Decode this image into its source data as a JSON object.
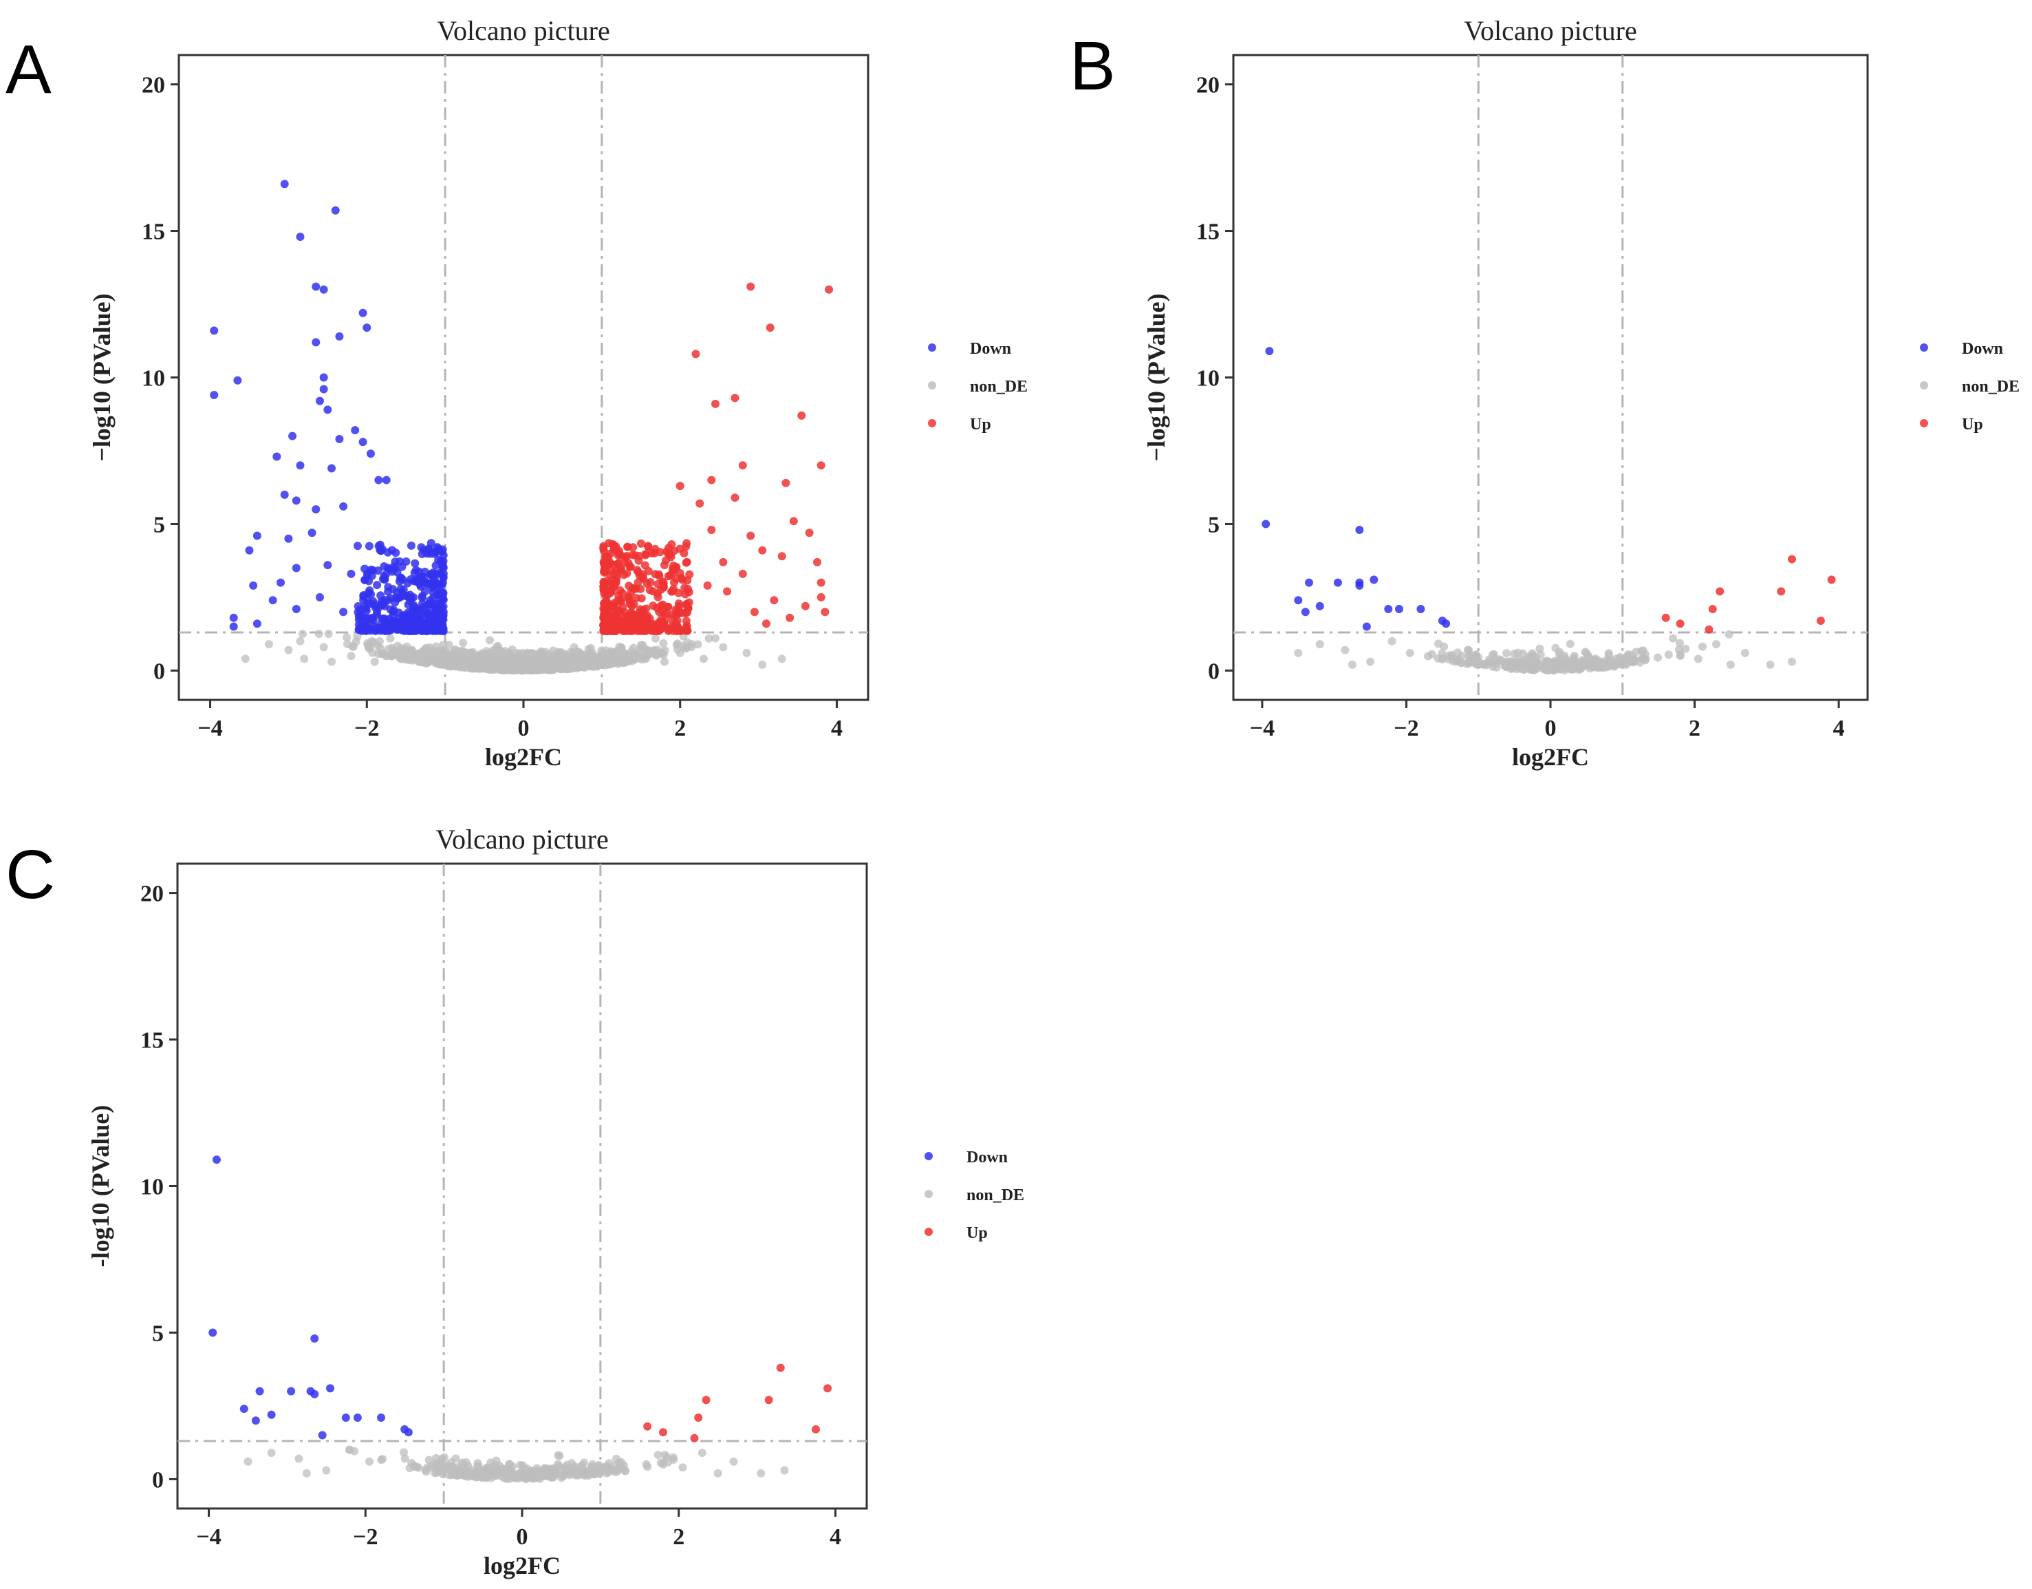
{
  "colors": {
    "down": "#3333EE",
    "non_de": "#BEBEBE",
    "up": "#EE3333",
    "threshold_line": "#B4B4B4"
  },
  "chart_data": [
    {
      "panel": "A",
      "type": "scatter",
      "title": "Volcano picture",
      "xlabel": "log2FC",
      "ylabel": "−log10 (PValue)",
      "xlim": [
        -4.4,
        4.4
      ],
      "ylim": [
        -1,
        21
      ],
      "xticks": [
        "−4",
        "−2",
        "0",
        "2",
        "4"
      ],
      "yticks": [
        "0",
        "5",
        "10",
        "15",
        "20"
      ],
      "grid": false,
      "legend_position": "right",
      "thresholds": {
        "log2fc": [
          -1,
          1
        ],
        "neg_log10_p": 1.3
      },
      "series": [
        {
          "name": "Down",
          "color": "#3333EE",
          "n_dense": 420,
          "points": [
            [
              -3.05,
              16.6
            ],
            [
              -2.4,
              15.7
            ],
            [
              -2.85,
              14.8
            ],
            [
              -2.65,
              13.1
            ],
            [
              -2.55,
              13.0
            ],
            [
              -3.95,
              11.6
            ],
            [
              -2.05,
              12.2
            ],
            [
              -2.35,
              11.4
            ],
            [
              -2.65,
              11.2
            ],
            [
              -2.0,
              11.7
            ],
            [
              -3.65,
              9.9
            ],
            [
              -2.55,
              10.0
            ],
            [
              -2.55,
              9.6
            ],
            [
              -2.6,
              9.2
            ],
            [
              -3.95,
              9.4
            ],
            [
              -2.95,
              8.0
            ],
            [
              -2.5,
              8.9
            ],
            [
              -2.15,
              8.2
            ],
            [
              -2.35,
              7.9
            ],
            [
              -2.05,
              7.8
            ],
            [
              -1.95,
              7.4
            ],
            [
              -3.15,
              7.3
            ],
            [
              -2.85,
              7.0
            ],
            [
              -2.45,
              6.9
            ],
            [
              -1.85,
              6.5
            ],
            [
              -1.75,
              6.5
            ],
            [
              -3.05,
              6.0
            ],
            [
              -2.9,
              5.8
            ],
            [
              -2.65,
              5.5
            ],
            [
              -2.3,
              5.6
            ],
            [
              -3.4,
              4.6
            ],
            [
              -3.0,
              4.5
            ],
            [
              -2.7,
              4.7
            ],
            [
              -3.5,
              4.1
            ],
            [
              -2.9,
              3.5
            ],
            [
              -3.1,
              3.0
            ],
            [
              -2.5,
              3.6
            ],
            [
              -3.45,
              2.9
            ],
            [
              -2.2,
              3.3
            ],
            [
              -3.2,
              2.4
            ],
            [
              -2.9,
              2.1
            ],
            [
              -2.6,
              2.5
            ],
            [
              -3.7,
              1.8
            ],
            [
              -3.4,
              1.6
            ],
            [
              -3.7,
              1.5
            ],
            [
              -2.3,
              2.0
            ]
          ]
        },
        {
          "name": "non_DE",
          "color": "#BEBEBE",
          "n_dense": 1700,
          "points": [
            [
              -3.55,
              0.4
            ],
            [
              -3.25,
              0.9
            ],
            [
              -2.85,
              1.0
            ],
            [
              -2.55,
              0.8
            ],
            [
              -2.8,
              0.4
            ],
            [
              -2.2,
              0.5
            ],
            [
              -1.9,
              0.3
            ],
            [
              -2.45,
              0.3
            ],
            [
              -3.0,
              0.7
            ],
            [
              3.05,
              0.2
            ],
            [
              2.85,
              0.6
            ],
            [
              2.55,
              0.8
            ],
            [
              2.3,
              0.4
            ],
            [
              2.0,
              0.6
            ],
            [
              1.8,
              0.3
            ],
            [
              2.45,
              1.1
            ],
            [
              3.3,
              0.4
            ],
            [
              2.15,
              0.9
            ]
          ]
        },
        {
          "name": "Up",
          "color": "#EE3333",
          "n_dense": 420,
          "points": [
            [
              2.9,
              13.1
            ],
            [
              3.9,
              13.0
            ],
            [
              3.15,
              11.7
            ],
            [
              2.2,
              10.8
            ],
            [
              2.45,
              9.1
            ],
            [
              2.7,
              9.3
            ],
            [
              3.55,
              8.7
            ],
            [
              3.8,
              7.0
            ],
            [
              2.8,
              7.0
            ],
            [
              2.0,
              6.3
            ],
            [
              2.4,
              6.5
            ],
            [
              3.35,
              6.4
            ],
            [
              2.7,
              5.9
            ],
            [
              2.25,
              5.7
            ],
            [
              3.65,
              4.7
            ],
            [
              2.4,
              4.8
            ],
            [
              2.9,
              4.6
            ],
            [
              3.05,
              4.1
            ],
            [
              3.45,
              5.1
            ],
            [
              3.75,
              3.7
            ],
            [
              3.8,
              3.0
            ],
            [
              3.8,
              2.5
            ],
            [
              3.85,
              2.0
            ],
            [
              2.55,
              3.7
            ],
            [
              3.3,
              3.9
            ],
            [
              2.8,
              3.3
            ],
            [
              3.2,
              2.4
            ],
            [
              3.6,
              2.2
            ],
            [
              2.6,
              2.7
            ],
            [
              2.95,
              2.0
            ],
            [
              2.35,
              2.9
            ],
            [
              1.8,
              3.6
            ],
            [
              2.05,
              4.0
            ],
            [
              3.4,
              1.8
            ],
            [
              3.1,
              1.6
            ]
          ]
        }
      ]
    },
    {
      "panel": "B",
      "type": "scatter",
      "title": "Volcano picture",
      "xlabel": "log2FC",
      "ylabel": "−log10 (PValue)",
      "xlim": [
        -4.4,
        4.4
      ],
      "ylim": [
        -1,
        21
      ],
      "xticks": [
        "−4",
        "−2",
        "0",
        "2",
        "4"
      ],
      "yticks": [
        "0",
        "5",
        "10",
        "15",
        "20"
      ],
      "grid": false,
      "legend_position": "right",
      "thresholds": {
        "log2fc": [
          -1,
          1
        ],
        "neg_log10_p": 1.3
      },
      "series": [
        {
          "name": "Down",
          "color": "#3333EE",
          "n_dense": 0,
          "points": [
            [
              -3.9,
              10.9
            ],
            [
              -3.95,
              5.0
            ],
            [
              -2.65,
              4.8
            ],
            [
              -3.35,
              3.0
            ],
            [
              -2.95,
              3.0
            ],
            [
              -2.65,
              3.0
            ],
            [
              -2.65,
              2.9
            ],
            [
              -2.45,
              3.1
            ],
            [
              -3.2,
              2.2
            ],
            [
              -3.5,
              2.4
            ],
            [
              -3.4,
              2.0
            ],
            [
              -2.25,
              2.1
            ],
            [
              -2.1,
              2.1
            ],
            [
              -1.8,
              2.1
            ],
            [
              -1.5,
              1.7
            ],
            [
              -1.45,
              1.6
            ],
            [
              -2.55,
              1.5
            ]
          ]
        },
        {
          "name": "non_DE",
          "color": "#BEBEBE",
          "n_dense": 330,
          "points": [
            [
              -3.5,
              0.6
            ],
            [
              -3.2,
              0.9
            ],
            [
              -2.85,
              0.7
            ],
            [
              -2.5,
              0.3
            ],
            [
              -2.2,
              1.0
            ],
            [
              -2.75,
              0.2
            ],
            [
              -1.95,
              0.6
            ],
            [
              3.05,
              0.2
            ],
            [
              2.7,
              0.6
            ],
            [
              3.35,
              0.3
            ],
            [
              2.3,
              0.9
            ],
            [
              2.05,
              0.4
            ],
            [
              1.8,
              0.5
            ],
            [
              2.5,
              0.2
            ]
          ]
        },
        {
          "name": "Up",
          "color": "#EE3333",
          "n_dense": 0,
          "points": [
            [
              3.35,
              3.8
            ],
            [
              3.9,
              3.1
            ],
            [
              3.2,
              2.7
            ],
            [
              2.35,
              2.7
            ],
            [
              2.25,
              2.1
            ],
            [
              1.6,
              1.8
            ],
            [
              1.8,
              1.6
            ],
            [
              2.2,
              1.4
            ],
            [
              3.75,
              1.7
            ]
          ]
        }
      ]
    },
    {
      "panel": "C",
      "type": "scatter",
      "title": "Volcano picture",
      "xlabel": "log2FC",
      "ylabel": "-log10 (PValue)",
      "xlim": [
        -4.4,
        4.4
      ],
      "ylim": [
        -1,
        21
      ],
      "xticks": [
        "−4",
        "−2",
        "0",
        "2",
        "4"
      ],
      "yticks": [
        "0",
        "5",
        "10",
        "15",
        "20"
      ],
      "grid": false,
      "legend_position": "right",
      "thresholds": {
        "log2fc": [
          -1,
          1
        ],
        "neg_log10_p": 1.3
      },
      "series": [
        {
          "name": "Down",
          "color": "#3333EE",
          "n_dense": 0,
          "points": [
            [
              -3.9,
              10.9
            ],
            [
              -3.95,
              5.0
            ],
            [
              -2.65,
              4.8
            ],
            [
              -3.35,
              3.0
            ],
            [
              -2.95,
              3.0
            ],
            [
              -2.7,
              3.0
            ],
            [
              -2.65,
              2.9
            ],
            [
              -2.45,
              3.1
            ],
            [
              -3.2,
              2.2
            ],
            [
              -3.55,
              2.4
            ],
            [
              -3.4,
              2.0
            ],
            [
              -2.25,
              2.1
            ],
            [
              -2.1,
              2.1
            ],
            [
              -1.8,
              2.1
            ],
            [
              -1.5,
              1.7
            ],
            [
              -1.45,
              1.6
            ],
            [
              -2.55,
              1.5
            ]
          ]
        },
        {
          "name": "non_DE",
          "color": "#BEBEBE",
          "n_dense": 330,
          "points": [
            [
              -3.5,
              0.6
            ],
            [
              -3.2,
              0.9
            ],
            [
              -2.85,
              0.7
            ],
            [
              -2.5,
              0.3
            ],
            [
              -2.2,
              1.0
            ],
            [
              -2.75,
              0.2
            ],
            [
              -1.95,
              0.6
            ],
            [
              3.05,
              0.2
            ],
            [
              2.7,
              0.6
            ],
            [
              3.35,
              0.3
            ],
            [
              2.3,
              0.9
            ],
            [
              2.05,
              0.4
            ],
            [
              1.8,
              0.5
            ],
            [
              2.5,
              0.2
            ]
          ]
        },
        {
          "name": "Up",
          "color": "#EE3333",
          "n_dense": 0,
          "points": [
            [
              3.3,
              3.8
            ],
            [
              3.9,
              3.1
            ],
            [
              3.15,
              2.7
            ],
            [
              2.35,
              2.7
            ],
            [
              2.25,
              2.1
            ],
            [
              1.6,
              1.8
            ],
            [
              1.8,
              1.6
            ],
            [
              2.2,
              1.4
            ],
            [
              3.75,
              1.7
            ]
          ]
        }
      ]
    }
  ]
}
